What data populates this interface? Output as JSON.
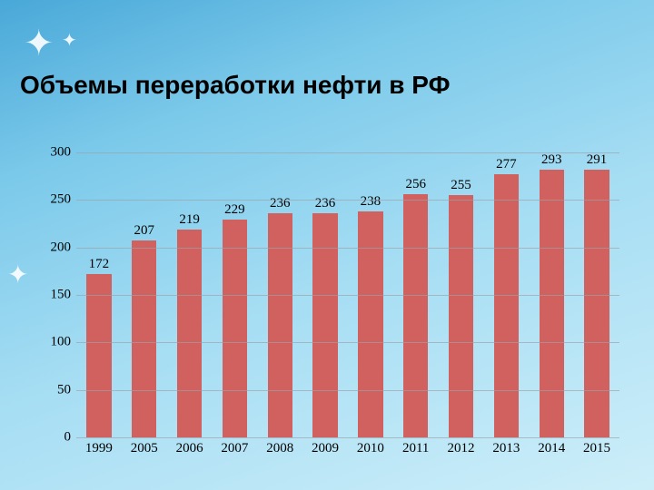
{
  "chart": {
    "type": "bar",
    "title": "Объемы переработки нефти в РФ",
    "title_fontsize": 28,
    "title_color": "#000000",
    "categories": [
      "1999",
      "2005",
      "2006",
      "2007",
      "2008",
      "2009",
      "2010",
      "2011",
      "2012",
      "2013",
      "2014",
      "2015"
    ],
    "values": [
      172,
      207,
      219,
      229,
      236,
      236,
      238,
      256,
      255,
      277,
      293,
      291
    ],
    "bar_color": "#d0615f",
    "value_label_color": "#000000",
    "value_label_fontsize": 15,
    "axis_label_fontsize": 15,
    "axis_label_color": "#000000",
    "ylim": [
      0,
      300
    ],
    "ytick_step": 50,
    "grid_color": "#9ba1a8",
    "bar_width_ratio": 0.55,
    "background": "transparent"
  }
}
